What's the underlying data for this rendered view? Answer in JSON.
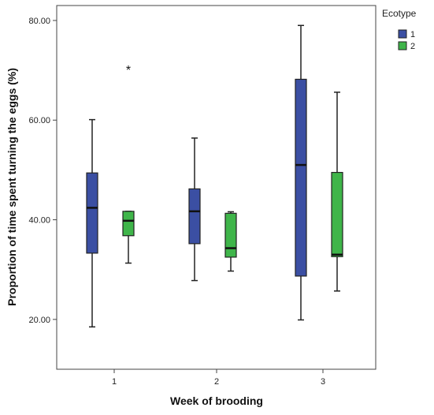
{
  "chart_data": {
    "type": "boxplot",
    "xlabel": "Week of brooding",
    "ylabel": "Proportion of time spent turning the eggs (%)",
    "categories": [
      "1",
      "2",
      "3"
    ],
    "yticks": [
      "20.00",
      "40.00",
      "60.00",
      "80.00"
    ],
    "ylim": [
      10,
      83
    ],
    "grid": false,
    "legend": {
      "title": "Ecotype",
      "position": "top-right"
    },
    "outlier_symbol": "*",
    "series": [
      {
        "name": "1",
        "color": "#3b4fa3",
        "boxes": [
          {
            "category": "1",
            "min": 18.5,
            "q1": 33.3,
            "median": 42.4,
            "q3": 49.4,
            "max": 60.1
          },
          {
            "category": "2",
            "min": 27.8,
            "q1": 35.2,
            "median": 41.7,
            "q3": 46.2,
            "max": 56.4
          },
          {
            "category": "3",
            "min": 19.9,
            "q1": 28.7,
            "median": 51.0,
            "q3": 68.2,
            "max": 79.0
          }
        ]
      },
      {
        "name": "2",
        "color": "#3fb54a",
        "boxes": [
          {
            "category": "1",
            "min": 31.3,
            "q1": 36.8,
            "median": 39.8,
            "q3": 41.7,
            "max": 41.7,
            "outliers": [
              70.3
            ]
          },
          {
            "category": "2",
            "min": 29.7,
            "q1": 32.5,
            "median": 34.3,
            "q3": 41.3,
            "max": 41.6
          },
          {
            "category": "3",
            "min": 25.7,
            "q1": 32.6,
            "median": 33.0,
            "q3": 49.5,
            "max": 65.6
          }
        ]
      }
    ]
  }
}
